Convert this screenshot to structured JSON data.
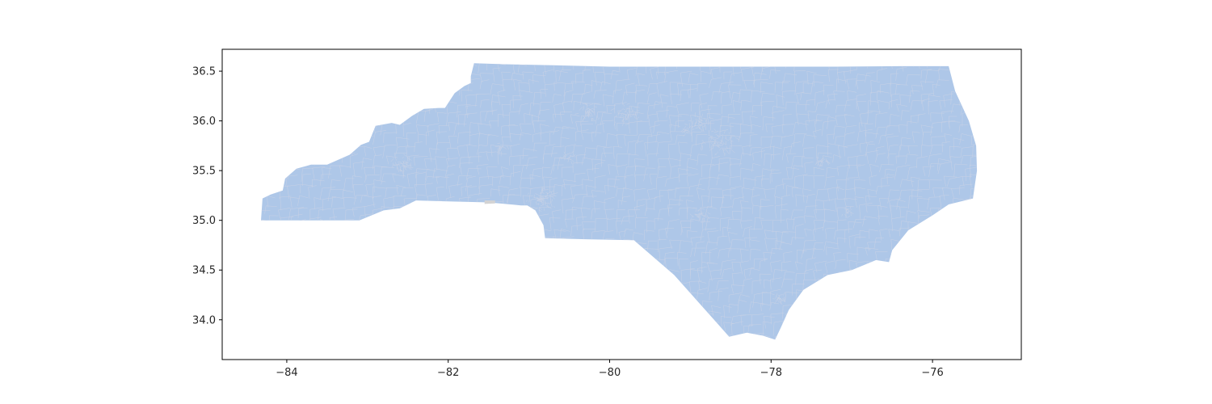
{
  "chart_data": {
    "type": "map",
    "title": "",
    "xlabel": "",
    "ylabel": "",
    "xlim": [
      -84.8,
      -74.9
    ],
    "ylim": [
      33.6,
      36.72
    ],
    "xticks": [
      -84,
      -82,
      -80,
      -78,
      -76
    ],
    "yticks": [
      34.0,
      34.5,
      35.0,
      35.5,
      36.0,
      36.5
    ],
    "xtick_labels": [
      "−84",
      "−82",
      "−80",
      "−78",
      "−76"
    ],
    "ytick_labels": [
      "34.0",
      "34.5",
      "35.0",
      "35.5",
      "36.0",
      "36.5"
    ],
    "grid": false,
    "legend": "none",
    "region": {
      "fill_color": "#aec7e8",
      "border_color": "#c8d2e6",
      "missing_color": "#d3d3d3",
      "outline": [
        [
          -84.32,
          35.0
        ],
        [
          -84.3,
          35.22
        ],
        [
          -84.2,
          35.26
        ],
        [
          -84.05,
          35.3
        ],
        [
          -84.02,
          35.42
        ],
        [
          -83.88,
          35.52
        ],
        [
          -83.7,
          35.56
        ],
        [
          -83.5,
          35.56
        ],
        [
          -83.22,
          35.66
        ],
        [
          -83.08,
          35.76
        ],
        [
          -82.98,
          35.79
        ],
        [
          -82.9,
          35.95
        ],
        [
          -82.7,
          35.98
        ],
        [
          -82.6,
          35.96
        ],
        [
          -82.45,
          36.05
        ],
        [
          -82.3,
          36.12
        ],
        [
          -82.12,
          36.13
        ],
        [
          -82.04,
          36.13
        ],
        [
          -81.92,
          36.28
        ],
        [
          -81.8,
          36.35
        ],
        [
          -81.72,
          36.38
        ],
        [
          -81.72,
          36.45
        ],
        [
          -81.68,
          36.58
        ],
        [
          -81.3,
          36.57
        ],
        [
          -80.7,
          36.56
        ],
        [
          -80.0,
          36.545
        ],
        [
          -79.3,
          36.545
        ],
        [
          -78.5,
          36.545
        ],
        [
          -77.9,
          36.545
        ],
        [
          -77.2,
          36.545
        ],
        [
          -76.4,
          36.55
        ],
        [
          -75.8,
          36.55
        ],
        [
          -75.72,
          36.3
        ],
        [
          -75.55,
          36.0
        ],
        [
          -75.46,
          35.75
        ],
        [
          -75.45,
          35.5
        ],
        [
          -75.5,
          35.22
        ],
        [
          -75.6,
          35.2
        ],
        [
          -75.8,
          35.16
        ],
        [
          -76.0,
          35.05
        ],
        [
          -76.3,
          34.9
        ],
        [
          -76.5,
          34.7
        ],
        [
          -76.54,
          34.58
        ],
        [
          -76.7,
          34.6
        ],
        [
          -77.0,
          34.5
        ],
        [
          -77.3,
          34.45
        ],
        [
          -77.6,
          34.3
        ],
        [
          -77.78,
          34.1
        ],
        [
          -77.88,
          33.92
        ],
        [
          -77.95,
          33.8
        ],
        [
          -78.1,
          33.84
        ],
        [
          -78.3,
          33.87
        ],
        [
          -78.52,
          33.83
        ],
        [
          -79.2,
          34.45
        ],
        [
          -79.7,
          34.8
        ],
        [
          -80.3,
          34.81
        ],
        [
          -80.8,
          34.82
        ],
        [
          -80.82,
          34.95
        ],
        [
          -80.92,
          35.1
        ],
        [
          -81.02,
          35.15
        ],
        [
          -81.1,
          35.15
        ],
        [
          -81.5,
          35.18
        ],
        [
          -82.0,
          35.19
        ],
        [
          -82.4,
          35.2
        ],
        [
          -82.6,
          35.12
        ],
        [
          -82.8,
          35.1
        ],
        [
          -83.1,
          35.0
        ],
        [
          -83.6,
          35.0
        ],
        [
          -84.32,
          35.0
        ]
      ],
      "missing_patch": [
        [
          -81.55,
          35.165
        ],
        [
          -81.55,
          35.2
        ],
        [
          -81.42,
          35.2
        ],
        [
          -81.42,
          35.17
        ]
      ],
      "metro_clusters": [
        {
          "lon": -80.85,
          "lat": 35.22,
          "count": 70,
          "spread": 0.22
        },
        {
          "lon": -78.65,
          "lat": 35.8,
          "count": 55,
          "spread": 0.22
        },
        {
          "lon": -78.9,
          "lat": 36.0,
          "count": 40,
          "spread": 0.14
        },
        {
          "lon": -79.8,
          "lat": 36.07,
          "count": 45,
          "spread": 0.18
        },
        {
          "lon": -80.25,
          "lat": 36.1,
          "count": 40,
          "spread": 0.16
        },
        {
          "lon": -82.55,
          "lat": 35.58,
          "count": 35,
          "spread": 0.15
        },
        {
          "lon": -78.9,
          "lat": 35.05,
          "count": 30,
          "spread": 0.13
        },
        {
          "lon": -77.9,
          "lat": 34.22,
          "count": 25,
          "spread": 0.12
        },
        {
          "lon": -77.37,
          "lat": 35.6,
          "count": 18,
          "spread": 0.1
        },
        {
          "lon": -77.05,
          "lat": 35.1,
          "count": 15,
          "spread": 0.09
        },
        {
          "lon": -81.35,
          "lat": 35.73,
          "count": 15,
          "spread": 0.1
        },
        {
          "lon": -80.5,
          "lat": 35.65,
          "count": 15,
          "spread": 0.1
        },
        {
          "lon": -79.05,
          "lat": 35.92,
          "count": 15,
          "spread": 0.08
        }
      ]
    }
  }
}
